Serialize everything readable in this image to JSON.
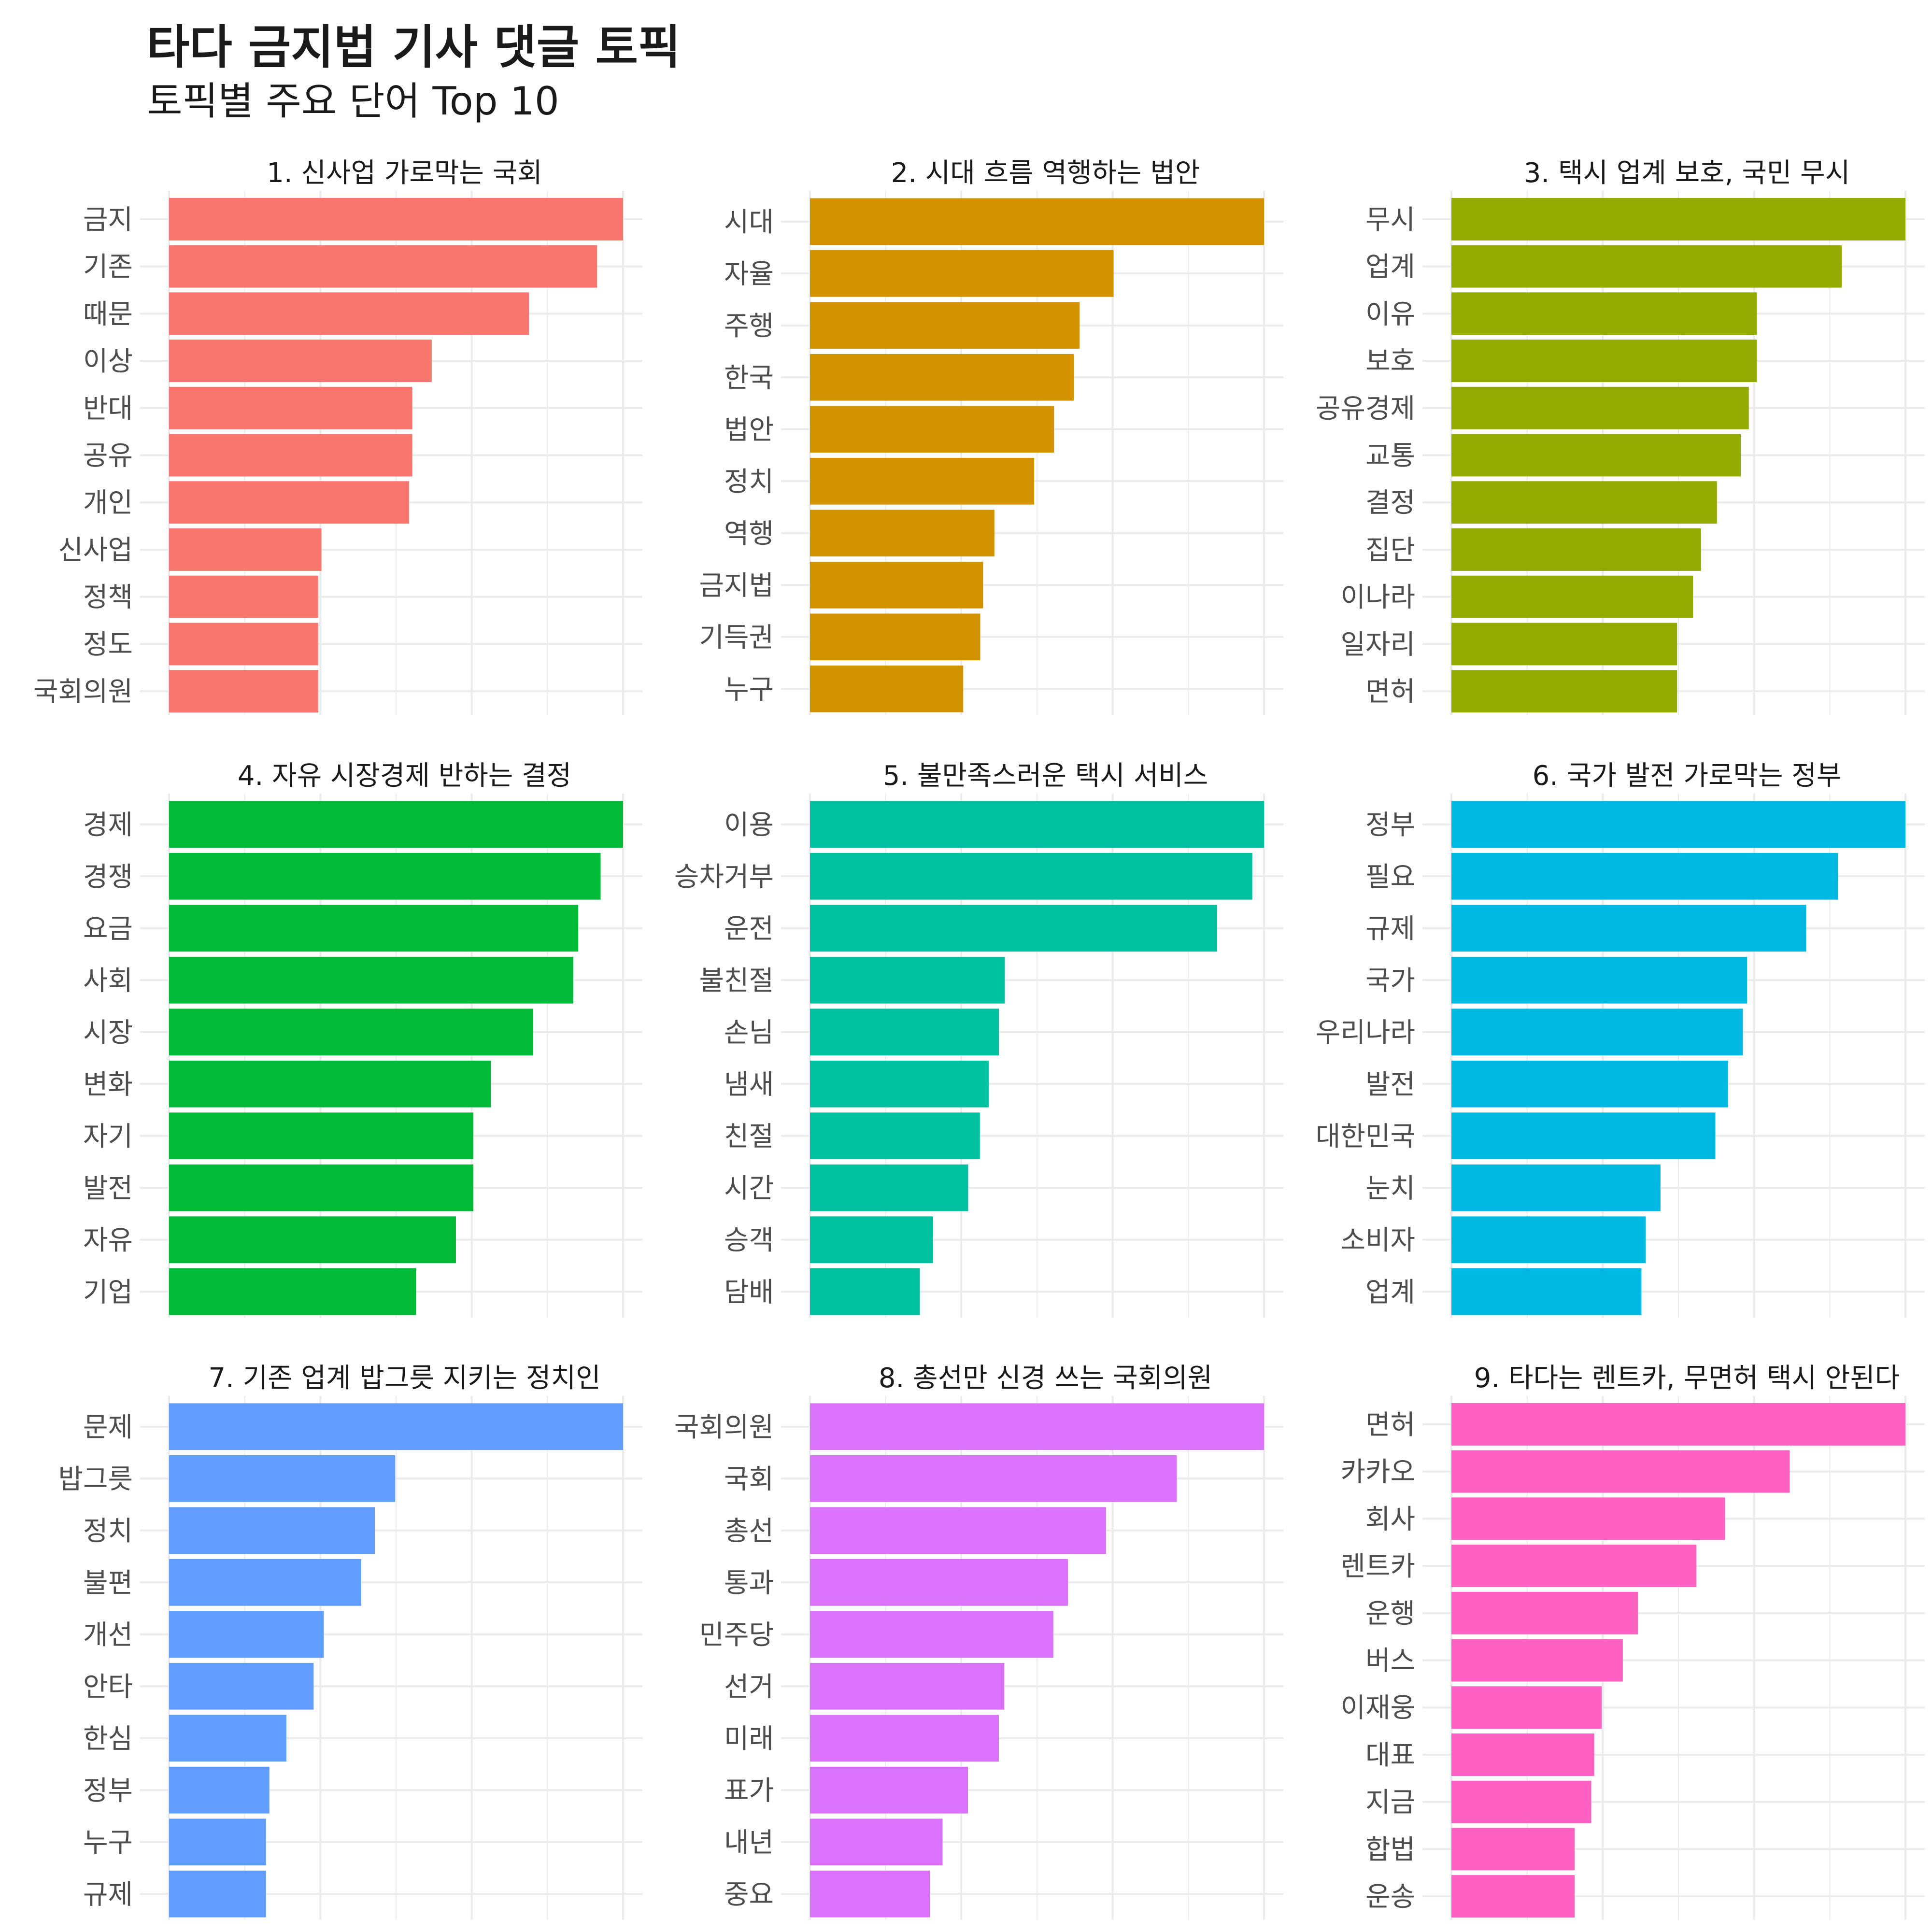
{
  "title": "타다 금지법 기사 댓글 토픽",
  "subtitle": "토픽별 주요 단어 Top 10",
  "chart_data": [
    {
      "type": "bar",
      "orientation": "horizontal",
      "title": "1. 신사업 가로막는 국회",
      "color": "#F8766D",
      "categories": [
        "금지",
        "기존",
        "때문",
        "이상",
        "반대",
        "공유",
        "개인",
        "신사업",
        "정책",
        "정도",
        "국회의원"
      ],
      "values": [
        0.014,
        0.0132,
        0.0111,
        0.0081,
        0.0075,
        0.0075,
        0.0074,
        0.0047,
        0.0046,
        0.0046,
        0.0046
      ]
    },
    {
      "type": "bar",
      "orientation": "horizontal",
      "title": "2. 시대 흐름 역행하는 법안",
      "color": "#D39200",
      "categories": [
        "시대",
        "자율",
        "주행",
        "한국",
        "법안",
        "정치",
        "역행",
        "금지법",
        "기득권",
        "누구"
      ],
      "values": [
        0.016,
        0.0107,
        0.0095,
        0.0093,
        0.0086,
        0.0079,
        0.0065,
        0.0061,
        0.006,
        0.0054
      ]
    },
    {
      "type": "bar",
      "orientation": "horizontal",
      "title": "3. 택시 업계 보호, 국민 무시",
      "color": "#93AA00",
      "categories": [
        "무시",
        "업계",
        "이유",
        "보호",
        "공유경제",
        "교통",
        "결정",
        "집단",
        "이나라",
        "일자리",
        "면허"
      ],
      "values": [
        0.0171,
        0.0147,
        0.0115,
        0.0115,
        0.0112,
        0.0109,
        0.01,
        0.0094,
        0.0091,
        0.0085,
        0.0085
      ]
    },
    {
      "type": "bar",
      "orientation": "horizontal",
      "title": "4. 자유 시장경제 반하는 결정",
      "color": "#00BA38",
      "categories": [
        "경제",
        "경쟁",
        "요금",
        "사회",
        "시장",
        "변화",
        "자기",
        "발전",
        "자유",
        "기업"
      ],
      "values": [
        0.0182,
        0.0173,
        0.0164,
        0.0162,
        0.0146,
        0.0129,
        0.0122,
        0.0122,
        0.0115,
        0.0099
      ]
    },
    {
      "type": "bar",
      "orientation": "horizontal",
      "title": "5. 불만족스러운 택시 서비스",
      "color": "#00C19F",
      "categories": [
        "이용",
        "승차거부",
        "운전",
        "불친절",
        "손님",
        "냄새",
        "친절",
        "시간",
        "승객",
        "담배"
      ],
      "values": [
        0.031,
        0.0302,
        0.0278,
        0.0133,
        0.0129,
        0.0122,
        0.0116,
        0.0108,
        0.0084,
        0.0075
      ]
    },
    {
      "type": "bar",
      "orientation": "horizontal",
      "title": "6. 국가 발전 가로막는 정부",
      "color": "#00B9E3",
      "categories": [
        "정부",
        "필요",
        "규제",
        "국가",
        "우리나라",
        "발전",
        "대한민국",
        "눈치",
        "소비자",
        "업계"
      ],
      "values": [
        0.0215,
        0.0183,
        0.0168,
        0.014,
        0.0138,
        0.0131,
        0.0125,
        0.0099,
        0.0092,
        0.009
      ]
    },
    {
      "type": "bar",
      "orientation": "horizontal",
      "title": "7. 기존 업계 밥그릇 지키는 정치인",
      "color": "#619CFF",
      "categories": [
        "문제",
        "밥그릇",
        "정치",
        "불편",
        "개선",
        "안타",
        "한심",
        "정부",
        "누구",
        "규제"
      ],
      "values": [
        0.0267,
        0.0133,
        0.0121,
        0.0113,
        0.0091,
        0.0085,
        0.0069,
        0.0059,
        0.0057,
        0.0057
      ]
    },
    {
      "type": "bar",
      "orientation": "horizontal",
      "title": "8. 총선만 신경 쓰는 국회의원",
      "color": "#DB72FB",
      "categories": [
        "국회의원",
        "국회",
        "총선",
        "통과",
        "민주당",
        "선거",
        "미래",
        "표가",
        "내년",
        "중요"
      ],
      "values": [
        0.025,
        0.0202,
        0.0163,
        0.0142,
        0.0134,
        0.0107,
        0.0104,
        0.0087,
        0.0073,
        0.0066
      ]
    },
    {
      "type": "bar",
      "orientation": "horizontal",
      "title": "9. 타다는 렌트카, 무면허 택시 안된다",
      "color": "#FF61C3",
      "categories": [
        "면허",
        "카카오",
        "회사",
        "렌트카",
        "운행",
        "버스",
        "이재웅",
        "대표",
        "지금",
        "합법",
        "운송"
      ],
      "values": [
        0.0302,
        0.0225,
        0.0182,
        0.0163,
        0.0124,
        0.0114,
        0.01,
        0.0095,
        0.0093,
        0.0082,
        0.0082
      ]
    }
  ]
}
